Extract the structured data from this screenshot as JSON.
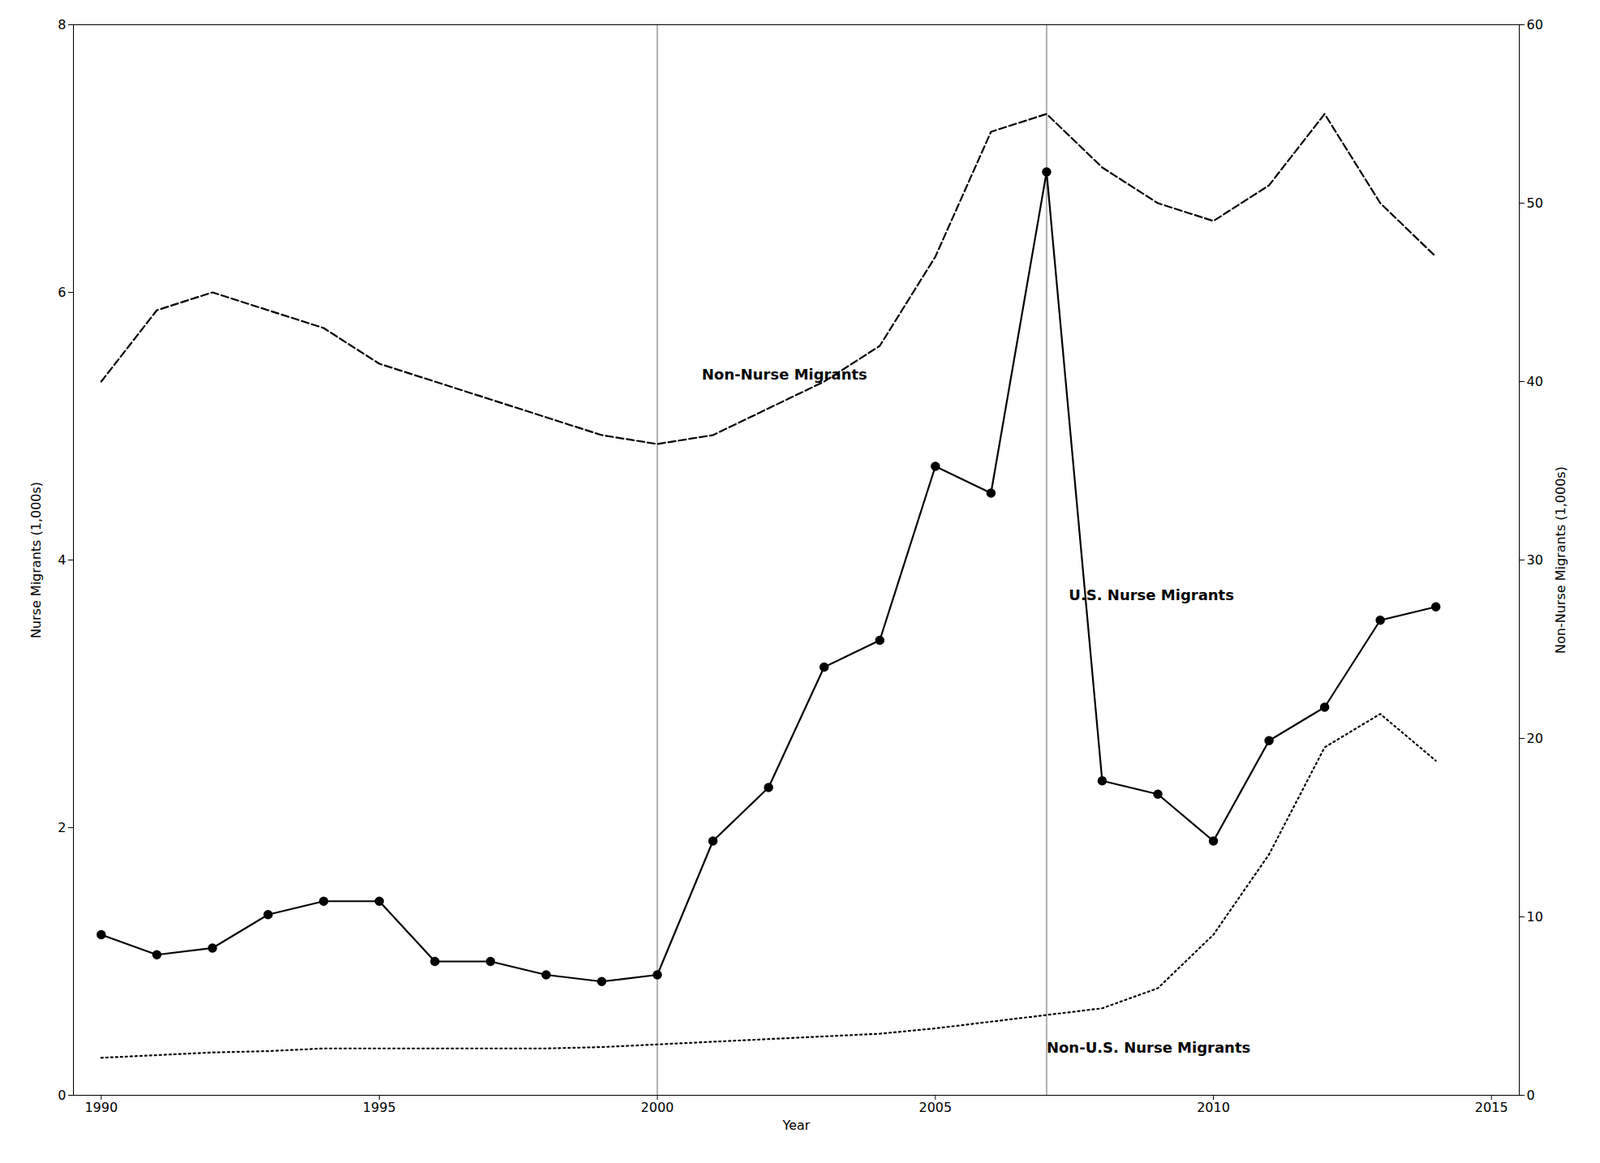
{
  "chart_data": {
    "type": "line",
    "xlabel": "Year",
    "ylabel": "Nurse Migrants (1,000s)",
    "y2label": "Non-Nurse Migrants (1,000s)",
    "x": [
      1990,
      1991,
      1992,
      1993,
      1994,
      1995,
      1996,
      1997,
      1998,
      1999,
      2000,
      2001,
      2002,
      2003,
      2004,
      2005,
      2006,
      2007,
      2008,
      2009,
      2010,
      2011,
      2012,
      2013,
      2014
    ],
    "series": [
      {
        "axis": "y2",
        "color": "#000000",
        "line_style": "dashed",
        "marker": "none",
        "values": [
          40,
          44,
          45,
          44,
          43,
          41,
          40,
          39,
          38,
          37,
          36.5,
          37,
          38.5,
          40,
          42,
          47,
          54,
          55,
          52,
          50,
          49,
          51,
          55,
          50,
          47
        ]
      },
      {
        "axis": "y",
        "color": "#000000",
        "line_style": "solid",
        "marker": "circle",
        "values": [
          1.2,
          1.05,
          1.1,
          1.35,
          1.45,
          1.45,
          1.0,
          1.0,
          0.9,
          0.85,
          0.9,
          1.9,
          2.3,
          3.2,
          3.4,
          4.7,
          4.5,
          6.9,
          2.35,
          2.25,
          1.9,
          2.65,
          2.9,
          3.55,
          3.65
        ]
      },
      {
        "axis": "y",
        "color": "#000000",
        "line_style": "dotted",
        "marker": "none",
        "values": [
          0.28,
          0.3,
          0.32,
          0.33,
          0.35,
          0.35,
          0.35,
          0.35,
          0.35,
          0.36,
          0.38,
          0.4,
          0.42,
          0.44,
          0.46,
          0.5,
          0.55,
          0.6,
          0.65,
          0.8,
          1.2,
          1.8,
          2.6,
          2.85,
          2.5
        ]
      }
    ],
    "vlines": {
      "values": [
        2000,
        2007
      ],
      "color": "#b0b0b0"
    },
    "annotations": [
      {
        "text": "Non-Nurse Migrants",
        "x": 2000.8,
        "y": 5.35
      },
      {
        "text": "U.S. Nurse Migrants",
        "x": 2007.4,
        "y": 3.7
      },
      {
        "text": "Non-U.S. Nurse Migrants",
        "x": 2007.0,
        "y": 0.32
      }
    ],
    "xlim": [
      1989.5,
      2015.5
    ],
    "xticks": [
      1990,
      1995,
      2000,
      2005,
      2010,
      2015
    ],
    "ylim": [
      0,
      8
    ],
    "yticks": [
      0,
      2,
      4,
      6,
      8
    ],
    "y2lim": [
      0,
      60
    ],
    "y2ticks": [
      0,
      10,
      20,
      30,
      40,
      50,
      60
    ],
    "legend": false,
    "grid": false
  }
}
